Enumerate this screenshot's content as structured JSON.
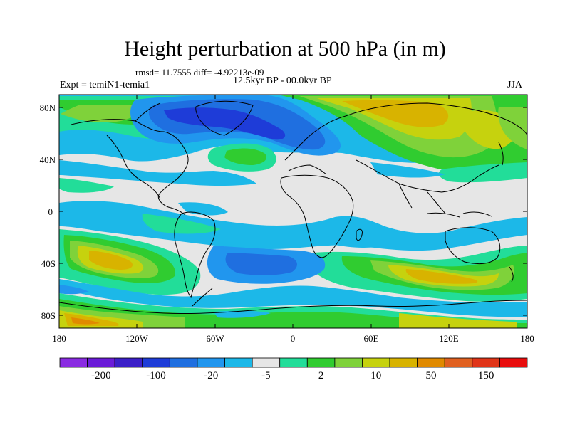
{
  "title": "Height perturbation at 500 hPa (in m)",
  "stats": "rmsd= 11.7555 diff= -4.92213e-09",
  "expt": "Expt = temiN1-temia1",
  "period": "12.5kyr BP - 00.0kyr BP",
  "season": "JJA",
  "lat_ticks": [
    "80N",
    "40N",
    "0",
    "40S",
    "80S"
  ],
  "lon_ticks": [
    "180",
    "120W",
    "60W",
    "0",
    "60E",
    "120E",
    "180"
  ],
  "colorbar": {
    "colors": [
      "#8a2be2",
      "#6a1bd8",
      "#3b1fc8",
      "#1e3cd8",
      "#1f6fe0",
      "#2196ee",
      "#1cb8e8",
      "#e6e6e6",
      "#22dd99",
      "#30cc30",
      "#7fd23a",
      "#c6d20e",
      "#d8b300",
      "#e08a00",
      "#e06020",
      "#e03418",
      "#e80d0d"
    ],
    "labels": [
      "-200",
      "-100",
      "-20",
      "-5",
      "2",
      "10",
      "50",
      "150"
    ]
  },
  "colors": {
    "ocean_neutral": "#e6e6e6",
    "coast": "#000000"
  }
}
